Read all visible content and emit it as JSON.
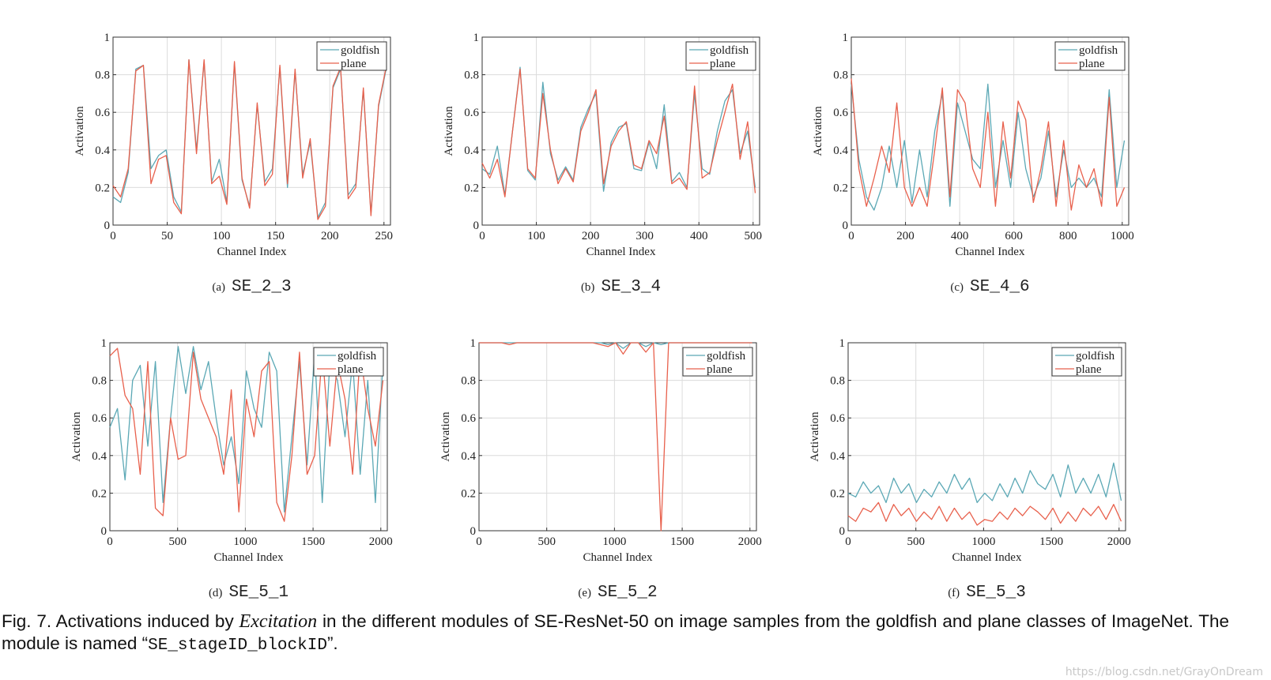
{
  "chart_data": [
    {
      "type": "line",
      "label": "(a)",
      "name": "SE_2_3",
      "xlabel": "Channel Index",
      "ylabel": "Activation",
      "xlim": [
        0,
        256
      ],
      "xticks": [
        0,
        50,
        100,
        150,
        200,
        250
      ],
      "ylim": [
        0,
        1
      ],
      "yticks": [
        0,
        0.2,
        0.4,
        0.6,
        0.8,
        1
      ],
      "grid": true,
      "legend": "upper right",
      "x": [
        0,
        7,
        14,
        21,
        28,
        35,
        42,
        49,
        56,
        63,
        70,
        77,
        84,
        91,
        98,
        105,
        112,
        119,
        126,
        133,
        140,
        147,
        154,
        161,
        168,
        175,
        182,
        189,
        196,
        203,
        210,
        217,
        224,
        231,
        238,
        245,
        252
      ],
      "series": [
        {
          "name": "goldfish",
          "color": "#5ba8b5",
          "values": [
            0.15,
            0.12,
            0.28,
            0.83,
            0.85,
            0.3,
            0.37,
            0.4,
            0.15,
            0.07,
            0.88,
            0.4,
            0.87,
            0.23,
            0.35,
            0.12,
            0.86,
            0.24,
            0.1,
            0.64,
            0.23,
            0.3,
            0.84,
            0.2,
            0.82,
            0.27,
            0.44,
            0.04,
            0.12,
            0.73,
            0.83,
            0.16,
            0.22,
            0.72,
            0.06,
            0.63,
            0.83
          ]
        },
        {
          "name": "plane",
          "color": "#e8604c",
          "values": [
            0.21,
            0.15,
            0.3,
            0.82,
            0.85,
            0.22,
            0.35,
            0.37,
            0.12,
            0.06,
            0.88,
            0.38,
            0.88,
            0.22,
            0.26,
            0.11,
            0.87,
            0.25,
            0.09,
            0.65,
            0.21,
            0.27,
            0.85,
            0.22,
            0.83,
            0.25,
            0.46,
            0.03,
            0.1,
            0.74,
            0.84,
            0.14,
            0.2,
            0.73,
            0.05,
            0.64,
            0.84
          ]
        }
      ]
    },
    {
      "type": "line",
      "label": "(b)",
      "name": "SE_3_4",
      "xlabel": "Channel Index",
      "ylabel": "Activation",
      "xlim": [
        0,
        512
      ],
      "xticks": [
        0,
        100,
        200,
        300,
        400,
        500
      ],
      "ylim": [
        0,
        1
      ],
      "yticks": [
        0,
        0.2,
        0.4,
        0.6,
        0.8,
        1
      ],
      "grid": true,
      "legend": "upper right",
      "x": [
        0,
        14,
        28,
        42,
        56,
        70,
        84,
        98,
        112,
        126,
        140,
        154,
        168,
        182,
        196,
        210,
        224,
        238,
        252,
        266,
        280,
        294,
        308,
        322,
        336,
        350,
        364,
        378,
        392,
        406,
        420,
        434,
        448,
        462,
        476,
        490,
        504
      ],
      "series": [
        {
          "name": "goldfish",
          "color": "#5ba8b5",
          "values": [
            0.3,
            0.27,
            0.42,
            0.16,
            0.5,
            0.84,
            0.29,
            0.24,
            0.76,
            0.38,
            0.24,
            0.31,
            0.24,
            0.52,
            0.62,
            0.7,
            0.18,
            0.44,
            0.52,
            0.54,
            0.3,
            0.29,
            0.44,
            0.3,
            0.64,
            0.23,
            0.28,
            0.2,
            0.7,
            0.3,
            0.27,
            0.5,
            0.66,
            0.72,
            0.38,
            0.5,
            0.2
          ]
        },
        {
          "name": "plane",
          "color": "#e8604c",
          "values": [
            0.33,
            0.25,
            0.35,
            0.15,
            0.5,
            0.83,
            0.3,
            0.25,
            0.7,
            0.4,
            0.22,
            0.3,
            0.23,
            0.5,
            0.6,
            0.72,
            0.22,
            0.42,
            0.5,
            0.55,
            0.32,
            0.3,
            0.45,
            0.38,
            0.58,
            0.22,
            0.25,
            0.19,
            0.74,
            0.25,
            0.28,
            0.45,
            0.6,
            0.75,
            0.35,
            0.55,
            0.17
          ]
        }
      ]
    },
    {
      "type": "line",
      "label": "(c)",
      "name": "SE_4_6",
      "xlabel": "Channel Index",
      "ylabel": "Activation",
      "xlim": [
        0,
        1024
      ],
      "xticks": [
        0,
        200,
        400,
        600,
        800,
        1000
      ],
      "ylim": [
        0,
        1
      ],
      "yticks": [
        0,
        0.2,
        0.4,
        0.6,
        0.8,
        1
      ],
      "grid": true,
      "legend": "upper right",
      "x": [
        0,
        28,
        56,
        84,
        112,
        140,
        168,
        196,
        224,
        252,
        280,
        308,
        336,
        364,
        392,
        420,
        448,
        476,
        504,
        532,
        560,
        588,
        616,
        644,
        672,
        700,
        728,
        756,
        784,
        812,
        840,
        868,
        896,
        924,
        952,
        980,
        1008
      ],
      "series": [
        {
          "name": "goldfish",
          "color": "#5ba8b5",
          "values": [
            0.75,
            0.35,
            0.15,
            0.08,
            0.2,
            0.42,
            0.2,
            0.45,
            0.12,
            0.4,
            0.15,
            0.5,
            0.7,
            0.1,
            0.65,
            0.5,
            0.35,
            0.3,
            0.75,
            0.2,
            0.45,
            0.2,
            0.6,
            0.3,
            0.15,
            0.25,
            0.5,
            0.15,
            0.4,
            0.2,
            0.25,
            0.2,
            0.25,
            0.15,
            0.72,
            0.2,
            0.45
          ]
        },
        {
          "name": "plane",
          "color": "#e8604c",
          "values": [
            0.78,
            0.3,
            0.1,
            0.25,
            0.42,
            0.28,
            0.65,
            0.2,
            0.1,
            0.2,
            0.1,
            0.4,
            0.73,
            0.15,
            0.72,
            0.65,
            0.3,
            0.2,
            0.6,
            0.1,
            0.55,
            0.25,
            0.66,
            0.56,
            0.12,
            0.3,
            0.55,
            0.1,
            0.45,
            0.08,
            0.32,
            0.2,
            0.3,
            0.1,
            0.68,
            0.1,
            0.2
          ]
        }
      ]
    },
    {
      "type": "line",
      "label": "(d)",
      "name": "SE_5_1",
      "xlabel": "Channel Index",
      "ylabel": "Activation",
      "xlim": [
        0,
        2048
      ],
      "xticks": [
        0,
        500,
        1000,
        1500,
        2000
      ],
      "ylim": [
        0,
        1
      ],
      "yticks": [
        0,
        0.2,
        0.4,
        0.6,
        0.8,
        1
      ],
      "grid": true,
      "legend": "upper right",
      "x": [
        0,
        56,
        112,
        168,
        224,
        280,
        336,
        392,
        448,
        504,
        560,
        616,
        672,
        728,
        784,
        840,
        896,
        952,
        1008,
        1064,
        1120,
        1176,
        1232,
        1288,
        1344,
        1400,
        1456,
        1512,
        1568,
        1624,
        1680,
        1736,
        1792,
        1848,
        1904,
        1960,
        2016
      ],
      "series": [
        {
          "name": "goldfish",
          "color": "#5ba8b5",
          "values": [
            0.55,
            0.65,
            0.27,
            0.8,
            0.88,
            0.45,
            0.9,
            0.15,
            0.6,
            0.98,
            0.73,
            0.98,
            0.75,
            0.9,
            0.6,
            0.35,
            0.5,
            0.25,
            0.85,
            0.65,
            0.55,
            0.95,
            0.85,
            0.1,
            0.5,
            0.9,
            0.35,
            0.95,
            0.15,
            0.9,
            0.8,
            0.5,
            0.9,
            0.3,
            0.8,
            0.15,
            0.9
          ]
        },
        {
          "name": "plane",
          "color": "#e8604c",
          "values": [
            0.93,
            0.97,
            0.72,
            0.65,
            0.3,
            0.9,
            0.12,
            0.08,
            0.6,
            0.38,
            0.4,
            0.95,
            0.7,
            0.6,
            0.5,
            0.3,
            0.75,
            0.1,
            0.7,
            0.5,
            0.85,
            0.9,
            0.15,
            0.05,
            0.4,
            0.95,
            0.3,
            0.4,
            0.95,
            0.45,
            0.9,
            0.7,
            0.3,
            0.95,
            0.65,
            0.45,
            0.8
          ]
        }
      ]
    },
    {
      "type": "line",
      "label": "(e)",
      "name": "SE_5_2",
      "xlabel": "Channel Index",
      "ylabel": "Activation",
      "xlim": [
        0,
        2048
      ],
      "xticks": [
        0,
        500,
        1000,
        1500,
        2000
      ],
      "ylim": [
        0,
        1
      ],
      "yticks": [
        0,
        0.2,
        0.4,
        0.6,
        0.8,
        1
      ],
      "grid": true,
      "legend": "upper right",
      "x": [
        0,
        56,
        112,
        168,
        224,
        280,
        336,
        392,
        448,
        504,
        560,
        616,
        672,
        728,
        784,
        840,
        896,
        952,
        1008,
        1064,
        1120,
        1176,
        1232,
        1288,
        1344,
        1400,
        1456,
        1512,
        1568,
        1624,
        1680,
        1736,
        1792,
        1848,
        1904,
        1960,
        2016
      ],
      "series": [
        {
          "name": "goldfish",
          "color": "#5ba8b5",
          "values": [
            1,
            1,
            1,
            1,
            1,
            1,
            1,
            1,
            1,
            1,
            1,
            1,
            1,
            1,
            1,
            1,
            1,
            0.99,
            1,
            0.97,
            1,
            1,
            0.98,
            1,
            0.99,
            1,
            1,
            1,
            1,
            1,
            1,
            1,
            1,
            1,
            1,
            1,
            1
          ]
        },
        {
          "name": "plane",
          "color": "#e8604c",
          "values": [
            1,
            1,
            1,
            1,
            0.99,
            1,
            1,
            1,
            1,
            1,
            1,
            1,
            1,
            1,
            1,
            1,
            0.99,
            0.98,
            1,
            0.94,
            1,
            1,
            0.95,
            1,
            0,
            1,
            1,
            1,
            1,
            1,
            1,
            1,
            1,
            1,
            1,
            1,
            1
          ]
        }
      ]
    },
    {
      "type": "line",
      "label": "(f)",
      "name": "SE_5_3",
      "xlabel": "Channel Index",
      "ylabel": "Activation",
      "xlim": [
        0,
        2048
      ],
      "xticks": [
        0,
        500,
        1000,
        1500,
        2000
      ],
      "ylim": [
        0,
        1
      ],
      "yticks": [
        0,
        0.2,
        0.4,
        0.6,
        0.8,
        1
      ],
      "grid": true,
      "legend": "upper right",
      "x": [
        0,
        56,
        112,
        168,
        224,
        280,
        336,
        392,
        448,
        504,
        560,
        616,
        672,
        728,
        784,
        840,
        896,
        952,
        1008,
        1064,
        1120,
        1176,
        1232,
        1288,
        1344,
        1400,
        1456,
        1512,
        1568,
        1624,
        1680,
        1736,
        1792,
        1848,
        1904,
        1960,
        2016
      ],
      "series": [
        {
          "name": "goldfish",
          "color": "#5ba8b5",
          "values": [
            0.2,
            0.18,
            0.26,
            0.2,
            0.24,
            0.15,
            0.28,
            0.2,
            0.25,
            0.15,
            0.22,
            0.18,
            0.26,
            0.2,
            0.3,
            0.22,
            0.28,
            0.15,
            0.2,
            0.16,
            0.25,
            0.18,
            0.28,
            0.2,
            0.32,
            0.25,
            0.22,
            0.3,
            0.18,
            0.35,
            0.2,
            0.28,
            0.2,
            0.3,
            0.18,
            0.36,
            0.16
          ]
        },
        {
          "name": "plane",
          "color": "#e8604c",
          "values": [
            0.08,
            0.05,
            0.12,
            0.1,
            0.15,
            0.05,
            0.14,
            0.08,
            0.12,
            0.05,
            0.1,
            0.06,
            0.13,
            0.05,
            0.12,
            0.06,
            0.1,
            0.03,
            0.06,
            0.05,
            0.1,
            0.06,
            0.12,
            0.08,
            0.13,
            0.1,
            0.06,
            0.12,
            0.04,
            0.1,
            0.05,
            0.12,
            0.08,
            0.13,
            0.06,
            0.14,
            0.05
          ]
        }
      ]
    }
  ],
  "caption": {
    "prefix": "Fig. 7. Activations induced by ",
    "emphasis": "Excitation",
    "middle": " in the different modules of SE-ResNet-50 on image samples from the goldfish and plane classes of ImageNet. The module is named “",
    "code": "SE_stageID_blockID",
    "suffix": "”."
  },
  "watermark": "https://blog.csdn.net/GrayOnDream"
}
